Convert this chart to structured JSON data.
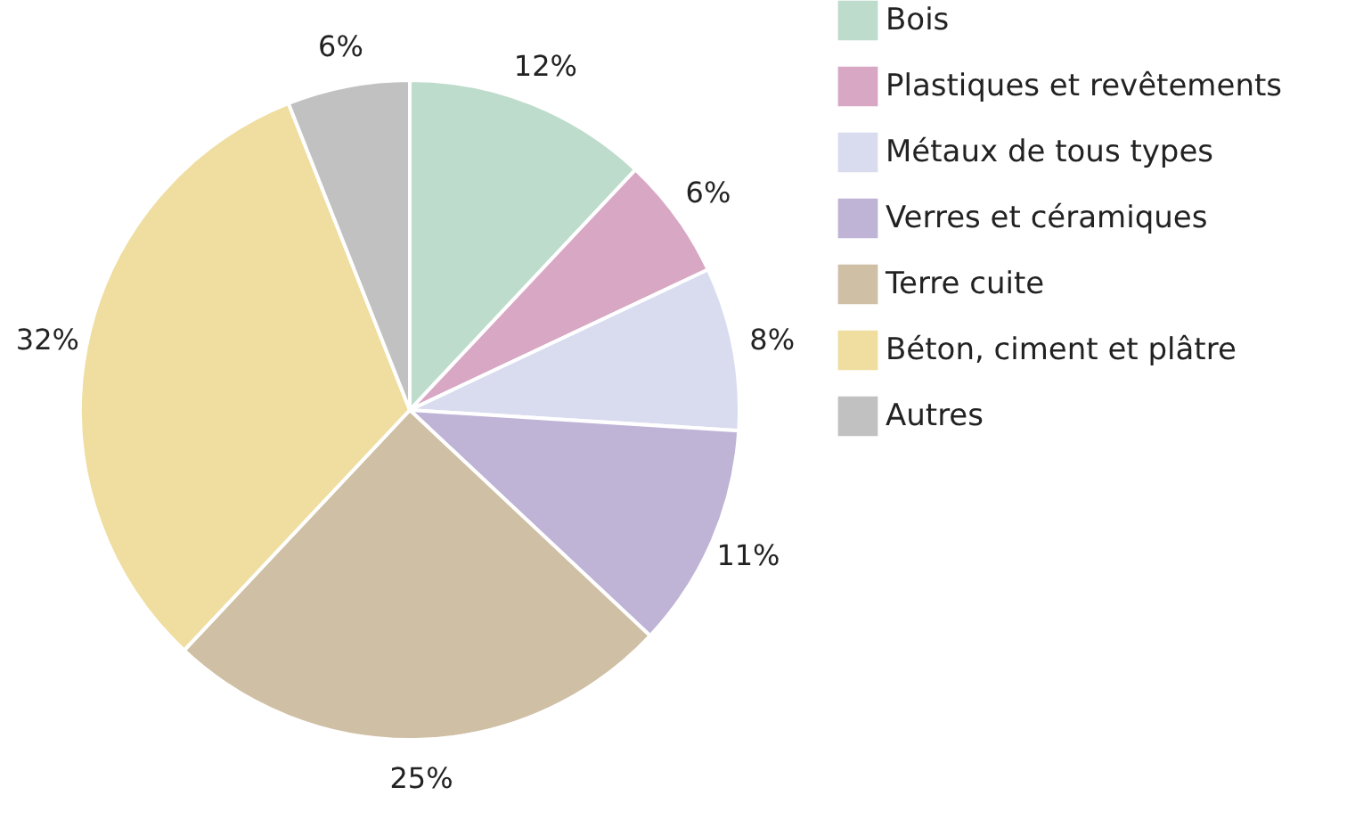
{
  "chart_data": {
    "type": "pie",
    "categories": [
      "Bois",
      "Plastiques et revêtements",
      "Métaux de tous types",
      "Verres et céramiques",
      "Terre cuite",
      "Béton, ciment et plâtre",
      "Autres"
    ],
    "values": [
      12,
      6,
      8,
      11,
      25,
      32,
      6
    ],
    "colors": [
      "#bddccb",
      "#d8a7c4",
      "#d9dcef",
      "#bfb3d6",
      "#cfbfa5",
      "#efdea0",
      "#c1c1c1"
    ],
    "value_labels": [
      "12%",
      "6%",
      "8%",
      "11%",
      "25%",
      "32%",
      "6%"
    ],
    "legend": "right"
  }
}
